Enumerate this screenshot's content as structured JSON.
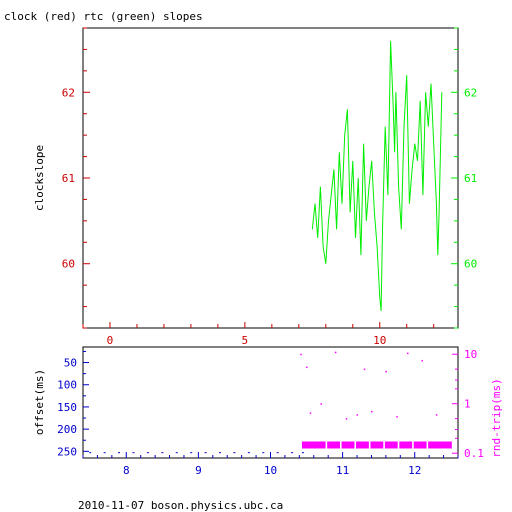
{
  "title": "clock (red) rtc (green) slopes",
  "footer": "2010-11-07 boson.physics.ubc.ca",
  "colors": {
    "clock": "#cc0000",
    "rtc": "#00ee00",
    "offset": "#0000cc",
    "roundtrip": "#ff00ff",
    "frame": "#000000"
  },
  "chart_data": [
    {
      "type": "line",
      "ylabel": "clockslope",
      "xlim": [
        -1,
        12.9
      ],
      "ylim": [
        59.25,
        62.75
      ],
      "x_ticks": [
        0,
        5,
        10
      ],
      "y_ticks": [
        60,
        61,
        62
      ],
      "series": [
        {
          "color": "#00ee00",
          "x": [
            7.5,
            7.6,
            7.7,
            7.8,
            7.9,
            8.0,
            8.1,
            8.2,
            8.3,
            8.4,
            8.5,
            8.6,
            8.7,
            8.8,
            8.9,
            9.0,
            9.1,
            9.2,
            9.3,
            9.4,
            9.5,
            9.6,
            9.7,
            9.8,
            9.9,
            10.0,
            10.05,
            10.1,
            10.2,
            10.3,
            10.4,
            10.5,
            10.55,
            10.6,
            10.7,
            10.8,
            10.9,
            11.0,
            11.1,
            11.2,
            11.3,
            11.4,
            11.5,
            11.6,
            11.7,
            11.8,
            11.9,
            12.0,
            12.1,
            12.15,
            12.2,
            12.3
          ],
          "y": [
            60.4,
            60.7,
            60.3,
            60.9,
            60.2,
            60.0,
            60.5,
            60.8,
            61.1,
            60.4,
            61.3,
            60.7,
            61.5,
            61.8,
            60.6,
            61.2,
            60.3,
            61.0,
            60.1,
            61.4,
            60.5,
            60.9,
            61.2,
            60.6,
            60.2,
            59.6,
            59.45,
            60.4,
            61.6,
            60.8,
            62.6,
            61.8,
            61.3,
            62.0,
            60.9,
            60.4,
            61.6,
            62.2,
            60.7,
            61.1,
            61.4,
            61.2,
            61.9,
            60.8,
            62.0,
            61.6,
            62.1,
            61.4,
            60.7,
            60.1,
            60.6,
            62.0
          ]
        }
      ]
    },
    {
      "type": "scatter",
      "ylabel": "offset(ms)",
      "y2label": "rnd-trip(ms)",
      "xlim": [
        7.4,
        12.6
      ],
      "ylim": [
        265,
        15
      ],
      "y2lim": [
        0.08,
        14
      ],
      "y2_log": true,
      "x_ticks": [
        8,
        9,
        10,
        11,
        12
      ],
      "y_ticks": [
        50,
        100,
        150,
        200,
        250
      ],
      "y2_ticks": [
        10,
        1,
        0.1
      ],
      "series": [
        {
          "color": "#0000cc",
          "x": [
            7.5,
            7.7,
            7.9,
            8.1,
            8.3,
            8.5,
            8.7,
            8.9,
            9.1,
            9.3,
            9.5,
            9.7,
            9.9,
            10.1,
            10.3,
            10.45
          ],
          "y": [
            253,
            253,
            253,
            253,
            253,
            253,
            253,
            253,
            253,
            253,
            253,
            253,
            253,
            253,
            253,
            253
          ]
        },
        {
          "color": "#ff00ff",
          "x": [
            10.45,
            10.6,
            10.8,
            11.0,
            11.2,
            11.4,
            11.6,
            11.8,
            12.0,
            12.2,
            12.35,
            10.42,
            10.5,
            10.55,
            10.7,
            10.9,
            11.05,
            11.2,
            11.3,
            11.4,
            11.6,
            11.75,
            11.9,
            12.1,
            12.3
          ],
          "y": [
            0.15,
            0.15,
            0.15,
            0.15,
            0.15,
            0.15,
            0.15,
            0.15,
            0.15,
            0.15,
            0.15,
            10.0,
            5.5,
            0.65,
            1.0,
            11.0,
            0.5,
            0.6,
            5.0,
            0.7,
            4.5,
            0.55,
            10.5,
            7.5,
            0.6
          ]
        }
      ]
    }
  ]
}
